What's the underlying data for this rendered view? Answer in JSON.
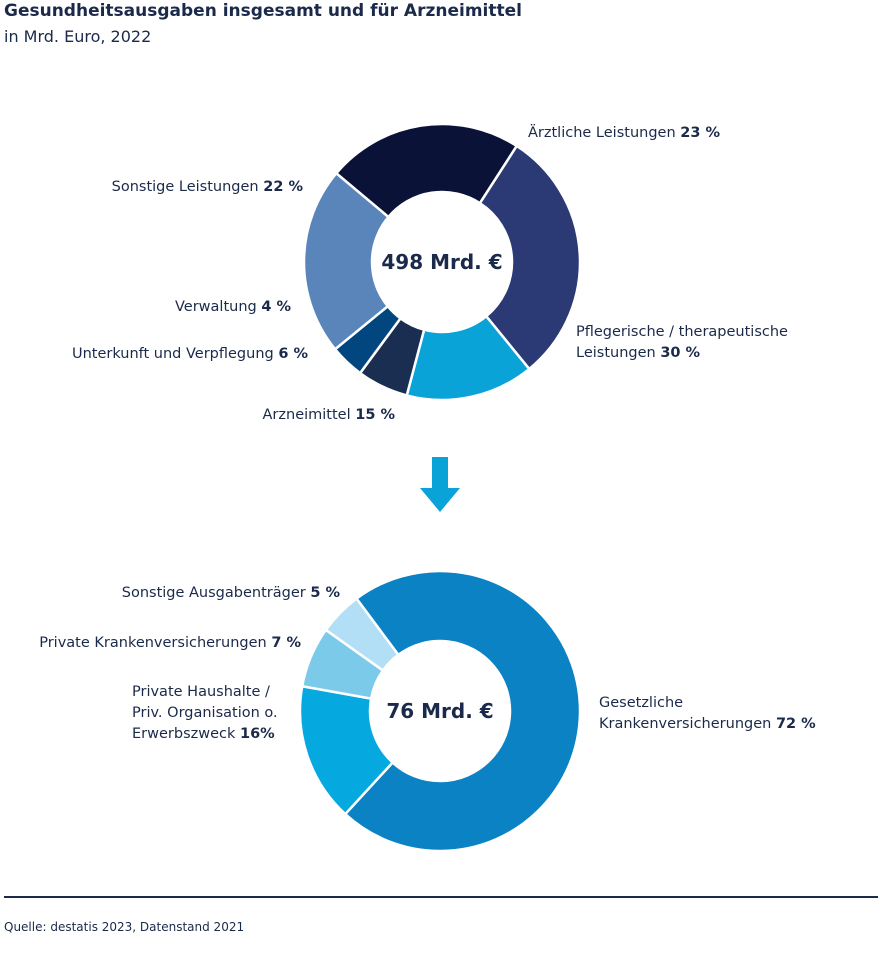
{
  "header": {
    "title": "Gesundheitsausgaben insgesamt und für Arzneimittel",
    "subtitle": "in Mrd. Euro, 2022"
  },
  "colors": {
    "arrow": "#0aa3d8"
  },
  "chart_data": [
    {
      "type": "pie",
      "donut": true,
      "center_label": "498 Mrd. €",
      "slices": [
        {
          "label": "Ärztliche Leistungen",
          "value_label": "23 %",
          "value": 23,
          "color": "#0b1238"
        },
        {
          "label": "Pflegerische / therapeutische Leistungen",
          "label_lines": [
            "Pflegerische / therapeutische",
            "Leistungen"
          ],
          "value_label": "30 %",
          "value": 30,
          "color": "#2b3a74"
        },
        {
          "label": "Arzneimittel",
          "value_label": "15 %",
          "value": 15,
          "color": "#0aa3d8"
        },
        {
          "label": "Unterkunft und Verpflegung",
          "value_label": "6 %",
          "value": 6,
          "color": "#1a2e52"
        },
        {
          "label": "Verwaltung",
          "value_label": "4 %",
          "value": 4,
          "color": "#02467f"
        },
        {
          "label": "Sonstige Leistungen",
          "value_label": "22 %",
          "value": 22,
          "color": "#5a85bb"
        }
      ]
    },
    {
      "type": "pie",
      "donut": true,
      "center_label": "76 Mrd. €",
      "slices": [
        {
          "label": "Gesetzliche Krankenversicherungen",
          "label_lines": [
            "Gesetzliche",
            "Krankenversicherungen"
          ],
          "value_label": "72 %",
          "value": 72,
          "color": "#0a82c4"
        },
        {
          "label": "Private Haushalte / Priv. Organisation o. Erwerbszweck",
          "label_lines": [
            "Private Haushalte /",
            "Priv. Organisation o.",
            "Erwerbszweck"
          ],
          "value_label": "16%",
          "value": 16,
          "color": "#05a8df"
        },
        {
          "label": "Private Krankenversicherungen",
          "value_label": "7 %",
          "value": 7,
          "color": "#7ccaea"
        },
        {
          "label": "Sonstige Ausgabenträger",
          "value_label": "5 %",
          "value": 5,
          "color": "#b2def6"
        }
      ]
    }
  ],
  "footer": {
    "source": "Quelle: destatis 2023, Datenstand 2021"
  }
}
